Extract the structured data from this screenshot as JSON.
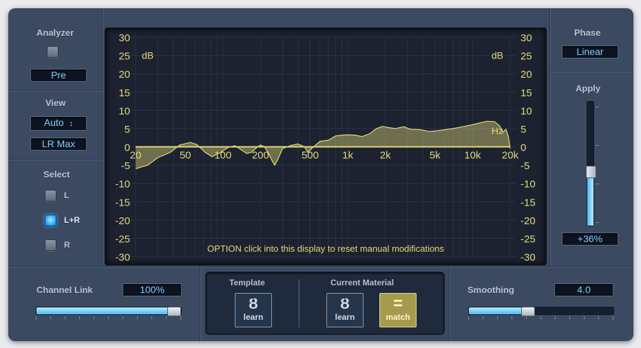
{
  "analyzer": {
    "label": "Analyzer",
    "position_value": "Pre"
  },
  "view": {
    "label": "View",
    "mode_value": "Auto",
    "mode_arrows": "↕",
    "channel_value": "LR Max"
  },
  "select": {
    "label": "Select",
    "options": [
      {
        "label": "L",
        "active": false
      },
      {
        "label": "L+R",
        "active": true
      },
      {
        "label": "R",
        "active": false
      }
    ]
  },
  "phase": {
    "label": "Phase",
    "value": "Linear"
  },
  "apply": {
    "label": "Apply",
    "value": "+36%",
    "level_fraction": 0.36
  },
  "display": {
    "db_unit_left": "dB",
    "db_unit_right": "dB",
    "hz_unit": "Hz",
    "db_ticks": [
      "30",
      "25",
      "20",
      "15",
      "10",
      "5",
      "0",
      "-5",
      "-10",
      "-15",
      "-20",
      "-25",
      "-30"
    ],
    "freq_ticks": [
      {
        "label": "20",
        "hz": 20
      },
      {
        "label": "50",
        "hz": 50
      },
      {
        "label": "100",
        "hz": 100
      },
      {
        "label": "200",
        "hz": 200
      },
      {
        "label": "500",
        "hz": 500
      },
      {
        "label": "1k",
        "hz": 1000
      },
      {
        "label": "2k",
        "hz": 2000
      },
      {
        "label": "5k",
        "hz": 5000
      },
      {
        "label": "10k",
        "hz": 10000
      },
      {
        "label": "20k",
        "hz": 20000
      }
    ],
    "hint": "OPTION click into this display to reset manual modifications",
    "curve_color": "#e3d97a",
    "curve": [
      [
        20,
        -6
      ],
      [
        25,
        -5
      ],
      [
        30,
        -3
      ],
      [
        38,
        -1.5
      ],
      [
        45,
        0.5
      ],
      [
        55,
        1.2
      ],
      [
        62,
        0.6
      ],
      [
        72,
        -1.5
      ],
      [
        82,
        -2.7
      ],
      [
        95,
        -1.6
      ],
      [
        110,
        -0.2
      ],
      [
        125,
        0.3
      ],
      [
        140,
        -0.8
      ],
      [
        155,
        -1.8
      ],
      [
        170,
        -1.5
      ],
      [
        185,
        -0.3
      ],
      [
        200,
        0.5
      ],
      [
        215,
        0
      ],
      [
        230,
        -1.5
      ],
      [
        245,
        -3.5
      ],
      [
        260,
        -5
      ],
      [
        275,
        -3.5
      ],
      [
        300,
        -0.5
      ],
      [
        350,
        0.4
      ],
      [
        400,
        0.8
      ],
      [
        450,
        0
      ],
      [
        480,
        -1.5
      ],
      [
        520,
        -0.3
      ],
      [
        600,
        1.5
      ],
      [
        700,
        1.8
      ],
      [
        800,
        3
      ],
      [
        900,
        3.2
      ],
      [
        1000,
        3.3
      ],
      [
        1150,
        3.2
      ],
      [
        1300,
        2.8
      ],
      [
        1500,
        3.6
      ],
      [
        1700,
        5
      ],
      [
        1900,
        5.6
      ],
      [
        2100,
        5.3
      ],
      [
        2400,
        5
      ],
      [
        2800,
        5.5
      ],
      [
        3200,
        4.8
      ],
      [
        3800,
        4.7
      ],
      [
        4500,
        4.2
      ],
      [
        5200,
        4.4
      ],
      [
        6000,
        4.7
      ],
      [
        7000,
        5
      ],
      [
        8000,
        5.4
      ],
      [
        9500,
        5.9
      ],
      [
        11000,
        6.4
      ],
      [
        13000,
        7
      ],
      [
        15000,
        6.9
      ],
      [
        16500,
        5.7
      ],
      [
        17500,
        4
      ],
      [
        18500,
        4.8
      ],
      [
        19300,
        3
      ],
      [
        20000,
        -0.5
      ]
    ]
  },
  "channel_link": {
    "label": "Channel Link",
    "value": "100%",
    "level_fraction": 1.0
  },
  "smoothing": {
    "label": "Smoothing",
    "value": "4.0",
    "level_fraction": 0.4
  },
  "template": {
    "label": "Template",
    "learn_glyph": "Ȣ",
    "learn_label": "learn"
  },
  "current_material": {
    "label": "Current Material",
    "learn_glyph": "Ȣ",
    "learn_label": "learn",
    "match_glyph": "=",
    "match_label": "match"
  }
}
